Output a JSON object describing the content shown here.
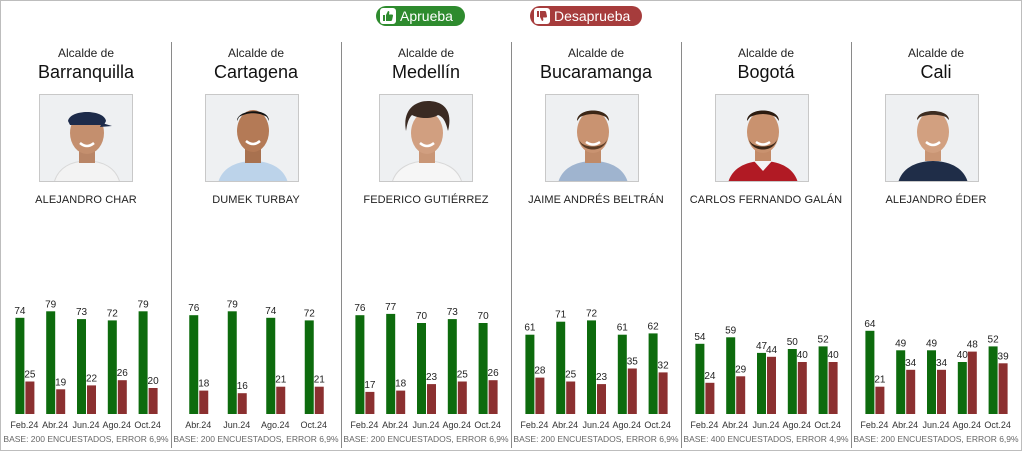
{
  "legend": {
    "approve_label": "Aprueba",
    "disapprove_label": "Desaprueba",
    "approve_color": "#0d6b0d",
    "disapprove_color": "#8b3030"
  },
  "subtitle": "Alcalde de",
  "chart_data": [
    {
      "type": "bar",
      "city": "Barranquilla",
      "mayor": "ALEJANDRO CHAR",
      "categories": [
        "Feb.24",
        "Abr.24",
        "Jun.24",
        "Ago.24",
        "Oct.24"
      ],
      "series": [
        {
          "name": "Aprueba",
          "values": [
            74,
            79,
            73,
            72,
            79
          ]
        },
        {
          "name": "Desaprueba",
          "values": [
            25,
            19,
            22,
            26,
            20
          ]
        }
      ],
      "ylim": [
        0,
        100
      ],
      "base": "BASE: 200 ENCUESTADOS, ERROR 6,9%"
    },
    {
      "type": "bar",
      "city": "Cartagena",
      "mayor": "DUMEK TURBAY",
      "categories": [
        "Abr.24",
        "Jun.24",
        "Ago.24",
        "Oct.24"
      ],
      "series": [
        {
          "name": "Aprueba",
          "values": [
            76,
            79,
            74,
            72
          ]
        },
        {
          "name": "Desaprueba",
          "values": [
            18,
            16,
            21,
            21
          ]
        }
      ],
      "ylim": [
        0,
        100
      ],
      "base": "BASE: 200 ENCUESTADOS, ERROR 6,9%"
    },
    {
      "type": "bar",
      "city": "Medellín",
      "mayor": "FEDERICO GUTIÉRREZ",
      "categories": [
        "Feb.24",
        "Abr.24",
        "Jun.24",
        "Ago.24",
        "Oct.24"
      ],
      "series": [
        {
          "name": "Aprueba",
          "values": [
            76,
            77,
            70,
            73,
            70
          ]
        },
        {
          "name": "Desaprueba",
          "values": [
            17,
            18,
            23,
            25,
            26
          ]
        }
      ],
      "ylim": [
        0,
        100
      ],
      "base": "BASE: 200 ENCUESTADOS, ERROR 6,9%"
    },
    {
      "type": "bar",
      "city": "Bucaramanga",
      "mayor": "JAIME ANDRÉS BELTRÁN",
      "categories": [
        "Feb.24",
        "Abr.24",
        "Jun.24",
        "Ago.24",
        "Oct.24"
      ],
      "series": [
        {
          "name": "Aprueba",
          "values": [
            61,
            71,
            72,
            61,
            62
          ]
        },
        {
          "name": "Desaprueba",
          "values": [
            28,
            25,
            23,
            35,
            32
          ]
        }
      ],
      "ylim": [
        0,
        100
      ],
      "base": "BASE: 200 ENCUESTADOS, ERROR 6,9%"
    },
    {
      "type": "bar",
      "city": "Bogotá",
      "mayor": "CARLOS FERNANDO GALÁN",
      "categories": [
        "Feb.24",
        "Abr.24",
        "Jun.24",
        "Ago.24",
        "Oct.24"
      ],
      "series": [
        {
          "name": "Aprueba",
          "values": [
            54,
            59,
            47,
            50,
            52
          ]
        },
        {
          "name": "Desaprueba",
          "values": [
            24,
            29,
            44,
            40,
            40
          ]
        }
      ],
      "ylim": [
        0,
        100
      ],
      "base": "BASE: 400 ENCUESTADOS, ERROR 4,9%"
    },
    {
      "type": "bar",
      "city": "Cali",
      "mayor": "ALEJANDRO ÉDER",
      "categories": [
        "Feb.24",
        "Abr.24",
        "Jun.24",
        "Ago.24",
        "Oct.24"
      ],
      "series": [
        {
          "name": "Aprueba",
          "values": [
            64,
            49,
            49,
            40,
            52
          ]
        },
        {
          "name": "Desaprueba",
          "values": [
            21,
            34,
            34,
            48,
            39
          ]
        }
      ],
      "ylim": [
        0,
        100
      ],
      "base": "BASE: 200 ENCUESTADOS, ERROR 6,9%"
    }
  ]
}
